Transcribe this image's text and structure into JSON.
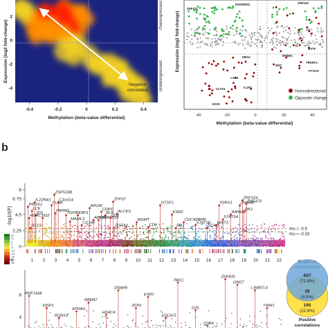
{
  "panel_b_letter": "b",
  "chart_data": [
    {
      "type": "heatmap",
      "panel": "a-left",
      "xlabel": "Methylation (beta-value differential)",
      "ylabel": "Expression (log2 fold-change)",
      "xticks": [
        "-0.4",
        "-0.2",
        "0",
        "0.2",
        "0.4"
      ],
      "xtick_values": [
        -0.4,
        -0.2,
        0,
        0.2,
        0.4
      ],
      "yticks": [
        "2",
        "0",
        "-2",
        "-4"
      ],
      "ytick_values": [
        2,
        0,
        -2,
        -4
      ],
      "xlim": [
        -0.5,
        0.5
      ],
      "ylim": [
        -5.2,
        3.4
      ],
      "annotation": [
        "Negative",
        "correlation"
      ],
      "side_labels": [
        "Overexpressed",
        "Underexpressed"
      ],
      "grid": false,
      "colors": {
        "bg": "#1a237e",
        "low": "#4050a0",
        "mid": "#f0d020",
        "high": "#ff2200"
      }
    },
    {
      "type": "scatter",
      "panel": "a-right",
      "xlabel": "Methylation (beta-value differential)",
      "ylabel": "Expression (log2 fold-change)",
      "xticks": [
        "-40",
        "-20",
        "0",
        "20",
        "40"
      ],
      "xtick_values": [
        -40,
        -20,
        0,
        20,
        40
      ],
      "xlim": [
        -50,
        50
      ],
      "yticks": [],
      "legend": [
        {
          "name": "Homodirectional",
          "color": "#8b0000"
        },
        {
          "name": "Opposite change",
          "color": "#39b54a"
        }
      ],
      "legend_position": "bottom-right",
      "point_labels": [
        "ZNF471",
        "KHDRBS2",
        "HBX4",
        "LAO1",
        "CLVS1",
        "IL1R2",
        "SOX5",
        "ZNF154",
        "BATF",
        "TRERF1",
        "PYGO1",
        "ERBB1",
        "MSC"
      ],
      "colors": {
        "gray": "#9a9a9a",
        "red": "#8b0000",
        "green": "#39b54a"
      }
    },
    {
      "type": "scatter",
      "panel": "b-manhattan",
      "ylabel": "-log10(P)",
      "yticks": [
        "8",
        "6.75",
        "4.5",
        "2.25",
        "0"
      ],
      "ytick_values": [
        8,
        6.75,
        4.5,
        2.25,
        0
      ],
      "ylim": [
        0,
        9
      ],
      "xlabel_prefix": "Chr",
      "chromosomes": [
        "1",
        "2",
        "3",
        "4",
        "5",
        "6",
        "7",
        "8",
        "9",
        "10",
        "11",
        "12",
        "13",
        "14",
        "15",
        "16",
        "17",
        "18",
        "19",
        "20",
        "21",
        "22"
      ],
      "chrom_colors": [
        "#e8e800",
        "#d4b000",
        "#f08000",
        "#e86020",
        "#d04060",
        "#c03070",
        "#b02080",
        "#9a1a5a",
        "#7a2a20",
        "#5a5a10",
        "#3a7020",
        "#208030",
        "#209060",
        "#2090a0",
        "#2080c0",
        "#2060d0",
        "#3050d8",
        "#5050c0",
        "#7040b0",
        "#8040a0",
        "#a03090",
        "#c02080"
      ],
      "thresholds": [
        {
          "label": "rho = -0.5",
          "y": 2.5,
          "color": "#c0392b"
        },
        {
          "label": "rho = -0.33",
          "y": 2.05,
          "color": "#2e8b2e"
        }
      ],
      "peaks": [
        {
          "gene": "BCL9",
          "chr": 1,
          "y": 2.6
        },
        {
          "gene": "IL22RA1",
          "chr": 1,
          "y": 6.2
        },
        {
          "gene": "PROX1",
          "chr": 1,
          "y": 5.6
        },
        {
          "gene": "LCK",
          "chr": 1,
          "y": 5.0
        },
        {
          "gene": "ID3",
          "chr": 1,
          "y": 4.4
        },
        {
          "gene": "HDAC1",
          "chr": 1,
          "y": 4.0
        },
        {
          "gene": "ID2",
          "chr": 2,
          "y": 4.0
        },
        {
          "gene": "ZNF518B",
          "chr": 3,
          "y": 7.3
        },
        {
          "gene": "C3orf14",
          "chr": 3,
          "y": 6.2
        },
        {
          "gene": "CLNK",
          "chr": 3,
          "y": 5.8
        },
        {
          "gene": "PARM1",
          "chr": 3,
          "y": 4.7
        },
        {
          "gene": "TGFBI",
          "chr": 4,
          "y": 4.4
        },
        {
          "gene": "EBF1",
          "chr": 5,
          "y": 4.4
        },
        {
          "gene": "MAML3",
          "chr": 4,
          "y": 3.5
        },
        {
          "gene": "CD180",
          "chr": 5,
          "y": 3.0
        },
        {
          "gene": "APOM",
          "chr": 6,
          "y": 5.4
        },
        {
          "gene": "ABCB1",
          "chr": 6,
          "y": 3.7
        },
        {
          "gene": "CDK6",
          "chr": 7,
          "y": 4.9
        },
        {
          "gene": "BLK",
          "chr": 7,
          "y": 4.4
        },
        {
          "gene": "KHDRBS3",
          "chr": 7,
          "y": 3.7
        },
        {
          "gene": "ZFP37",
          "chr": 8,
          "y": 6.3
        },
        {
          "gene": "ALCKS",
          "chr": 8,
          "y": 4.6
        },
        {
          "gene": "CD5",
          "chr": 8,
          "y": 4.0
        },
        {
          "gene": "GSTA4",
          "chr": 8,
          "y": 2.6
        },
        {
          "gene": "MGMT",
          "chr": 10,
          "y": 3.4
        },
        {
          "gene": "CD6",
          "chr": 11,
          "y": 2.7
        },
        {
          "gene": "GTSF1",
          "chr": 12,
          "y": 5.8
        },
        {
          "gene": "KSR2",
          "chr": 13,
          "y": 4.5
        },
        {
          "gene": "RB1",
          "chr": 13,
          "y": 2.6
        },
        {
          "gene": "CDC42BPB",
          "chr": 14,
          "y": 3.4
        },
        {
          "gene": "STAT5B",
          "chr": 15,
          "y": 3.0
        },
        {
          "gene": "SOX8",
          "chr": 16,
          "y": 2.6
        },
        {
          "gene": "P2RX1",
          "chr": 17,
          "y": 5.8
        },
        {
          "gene": "IMPACT",
          "chr": 18,
          "y": 4.5
        },
        {
          "gene": "STAT5A",
          "chr": 17,
          "y": 3.8
        },
        {
          "gene": "WNT3",
          "chr": 17,
          "y": 3.0
        },
        {
          "gene": "ZNF154",
          "chr": 19,
          "y": 6.5
        },
        {
          "gene": "ZNF470",
          "chr": 19,
          "y": 6.0
        },
        {
          "gene": "ZNF880",
          "chr": 19,
          "y": 5.8
        },
        {
          "gene": "ZIK1",
          "chr": 19,
          "y": 4.9
        }
      ]
    },
    {
      "type": "heatmap",
      "panel": "b-colorbar",
      "ticks": [
        "20",
        "10",
        "5",
        "0",
        "-5",
        "-10",
        "-20",
        "-40",
        "-60",
        "-80"
      ],
      "tick_values": [
        20,
        10,
        5,
        0,
        -5,
        -10,
        -20,
        -40,
        -60,
        -80
      ],
      "colors": [
        "#1f7a1f",
        "#3c9a32",
        "#7cbf3a",
        "#b8d640",
        "#f0e040",
        "#f5b030",
        "#e87020",
        "#c83018",
        "#9a1010",
        "#6a0808"
      ]
    },
    {
      "type": "scatter",
      "panel": "b-lower",
      "yticks": [
        "6",
        "4"
      ],
      "ytick_values": [
        6,
        4
      ],
      "peaks": [
        {
          "gene": "RNF144A",
          "y": 5.9
        },
        {
          "gene": "DISP1",
          "y": 4.8
        },
        {
          "gene": "RUNX3",
          "y": 3.9
        },
        {
          "gene": "EPHA4",
          "y": 4.5
        },
        {
          "gene": "RBM47",
          "y": 5.3
        },
        {
          "gene": "HDAC4",
          "y": 4.2
        },
        {
          "gene": "DNAH8",
          "y": 6.4
        },
        {
          "gene": "ZFP2",
          "y": 4.8
        },
        {
          "gene": "ESR1",
          "y": 5.8
        },
        {
          "gene": "CDCA7L",
          "y": 3.9
        },
        {
          "gene": "PAG1",
          "y": 7.1
        },
        {
          "gene": "SVIL",
          "y": 4.6
        },
        {
          "gene": "CDK4",
          "y": 3.2
        },
        {
          "gene": "ZNF835",
          "y": 7.4
        },
        {
          "gene": "GNG7",
          "y": 6.9
        },
        {
          "gene": "L3MBTL4",
          "y": 6.4
        },
        {
          "gene": "TIAM1",
          "y": 4.8
        }
      ]
    },
    {
      "type": "table",
      "panel": "b-venn",
      "circles": [
        {
          "name": "Negative correlations",
          "color": "#6fa8dc",
          "value": "627",
          "pct": "(72.8%)"
        },
        {
          "name": "Positive correlations",
          "color": "#ffe14a",
          "value": "195",
          "pct": "(22.6%)"
        }
      ],
      "overlap": {
        "value": "39",
        "pct": "(4.5%)"
      }
    }
  ]
}
